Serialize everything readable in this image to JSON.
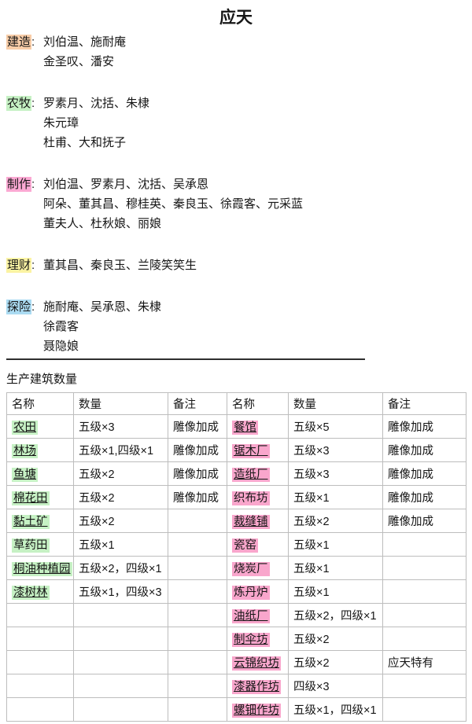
{
  "title": "应天",
  "ui": {
    "colon": ":"
  },
  "sections": [
    {
      "label": "建造",
      "color": "#F8CDA8",
      "lines": [
        "刘伯温、施耐庵",
        "金圣叹、潘安"
      ]
    },
    {
      "label": "农牧",
      "color": "#C6F1C4",
      "lines": [
        "罗素月、沈括、朱棣",
        "朱元璋",
        "杜甫、大和抚子"
      ]
    },
    {
      "label": "制作",
      "color": "#FBA9D3",
      "lines": [
        "刘伯温、罗素月、沈括、吴承恩",
        "阿朵、董其昌、穆桂英、秦良玉、徐霞客、元采蓝",
        "董夫人、杜秋娘、丽娘"
      ]
    },
    {
      "label": "理财",
      "color": "#FBF3A3",
      "lines": [
        "董其昌、秦良玉、兰陵笑笑生"
      ]
    },
    {
      "label": "探险",
      "color": "#ABDBF2",
      "lines": [
        "施耐庵、吴承恩、朱棣",
        "徐霞客",
        "聂隐娘"
      ]
    }
  ],
  "table_title": "生产建筑数量",
  "colors": {
    "table_name_green": "#C6F1C4",
    "table_name_pink": "#F9A6CC",
    "table_border": "#BDBDBD",
    "divider": "#2F2F2F"
  },
  "table": {
    "headers": [
      "名称",
      "数量",
      "备注",
      "名称",
      "数量",
      "备注"
    ],
    "rows": [
      {
        "left": {
          "name": "农田",
          "underline": true,
          "qty": "五级×3",
          "note": "雕像加成"
        },
        "right": {
          "name": "餐馆",
          "underline": true,
          "qty": "五级×5",
          "note": "雕像加成"
        }
      },
      {
        "left": {
          "name": "林场",
          "underline": true,
          "qty": "五级×1,四级×1",
          "note": "雕像加成"
        },
        "right": {
          "name": "锯木厂",
          "underline": true,
          "qty": "五级×3",
          "note": "雕像加成"
        }
      },
      {
        "left": {
          "name": "鱼塘",
          "underline": true,
          "qty": "五级×2",
          "note": "雕像加成"
        },
        "right": {
          "name": "造纸厂",
          "underline": true,
          "qty": "五级×3",
          "note": "雕像加成"
        }
      },
      {
        "left": {
          "name": "棉花田",
          "underline": true,
          "qty": "五级×2",
          "note": "雕像加成"
        },
        "right": {
          "name": "织布坊",
          "underline": false,
          "qty": "五级×1",
          "note": "雕像加成"
        }
      },
      {
        "left": {
          "name": "黏土矿",
          "underline": true,
          "qty": "五级×2",
          "note": ""
        },
        "right": {
          "name": "裁缝铺",
          "underline": true,
          "qty": "五级×2",
          "note": "雕像加成"
        }
      },
      {
        "left": {
          "name": "草药田",
          "underline": false,
          "qty": "五级×1",
          "note": ""
        },
        "right": {
          "name": "瓷窑",
          "underline": false,
          "qty": "五级×1",
          "note": ""
        }
      },
      {
        "left": {
          "name": "桐油种植园",
          "underline": true,
          "qty": "五级×2，四级×1",
          "note": ""
        },
        "right": {
          "name": "烧炭厂",
          "underline": false,
          "qty": "五级×1",
          "note": ""
        }
      },
      {
        "left": {
          "name": "漆树林",
          "underline": true,
          "qty": "五级×1，四级×3",
          "note": ""
        },
        "right": {
          "name": "炼丹炉",
          "underline": false,
          "qty": "五级×1",
          "note": ""
        }
      },
      {
        "left": {
          "name": "",
          "underline": false,
          "qty": "",
          "note": ""
        },
        "right": {
          "name": "油纸厂",
          "underline": true,
          "qty": "五级×2，四级×1",
          "note": ""
        }
      },
      {
        "left": {
          "name": "",
          "underline": false,
          "qty": "",
          "note": ""
        },
        "right": {
          "name": "制伞坊",
          "underline": true,
          "qty": "五级×2",
          "note": ""
        }
      },
      {
        "left": {
          "name": "",
          "underline": false,
          "qty": "",
          "note": ""
        },
        "right": {
          "name": "云锦织坊",
          "underline": true,
          "qty": "五级×2",
          "note": "应天特有"
        }
      },
      {
        "left": {
          "name": "",
          "underline": false,
          "qty": "",
          "note": ""
        },
        "right": {
          "name": "漆器作坊",
          "underline": true,
          "qty": "四级×3",
          "note": ""
        }
      },
      {
        "left": {
          "name": "",
          "underline": false,
          "qty": "",
          "note": ""
        },
        "right": {
          "name": "螺钿作坊",
          "underline": true,
          "qty": "五级×1，四级×1",
          "note": ""
        }
      }
    ]
  }
}
